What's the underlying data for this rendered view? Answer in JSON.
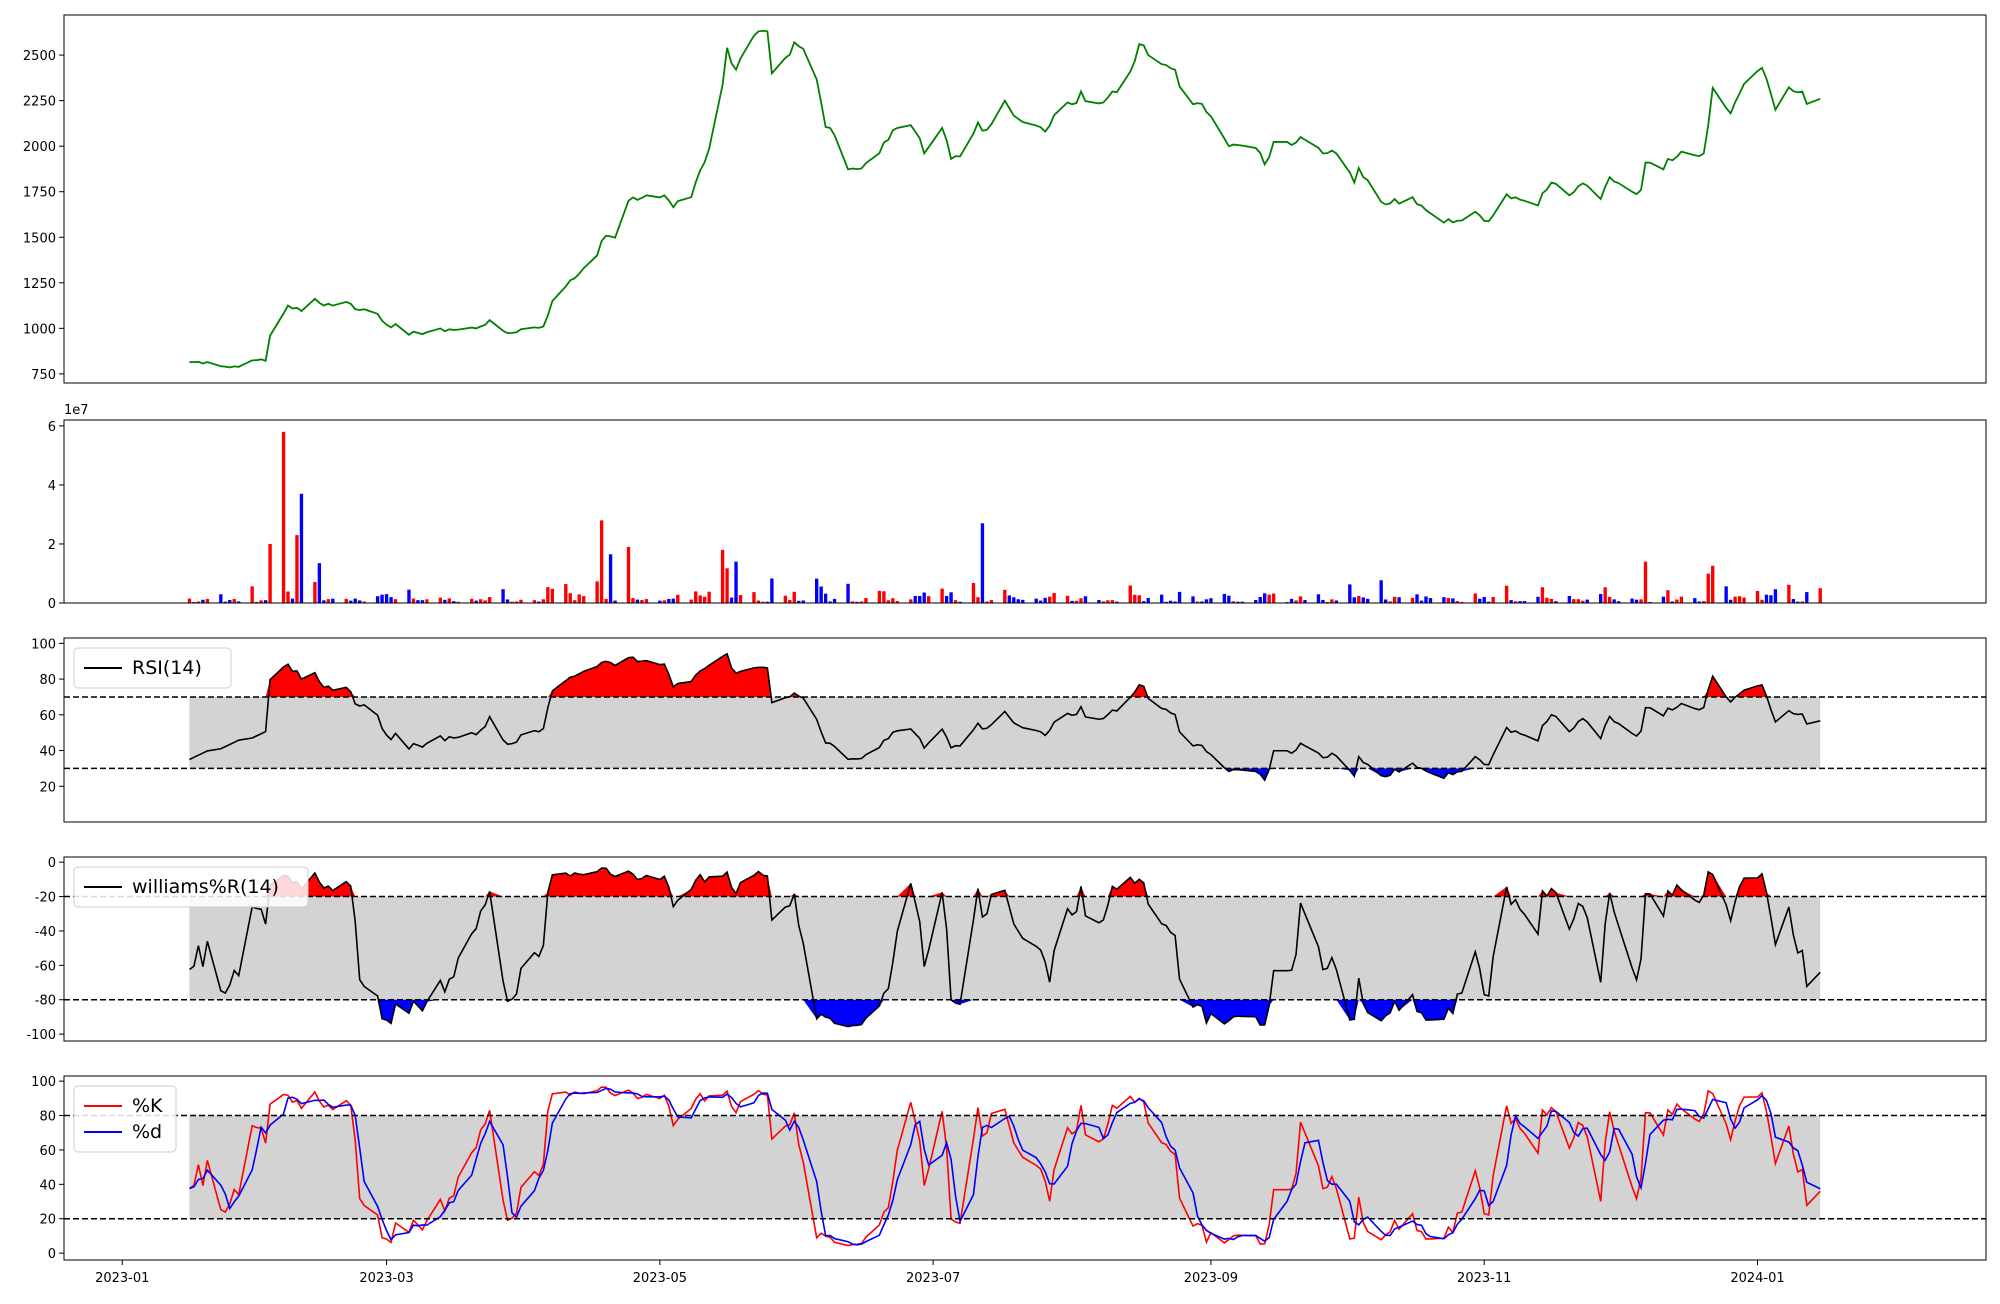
{
  "chart_data": [
    {
      "type": "line",
      "panel": "price",
      "xlim": [
        "2022-12-19",
        "2024-02-21"
      ],
      "ylim": [
        700,
        2720
      ],
      "yticks": [
        750,
        1000,
        1250,
        1500,
        1750,
        2000,
        2250,
        2500
      ],
      "color": "#008000",
      "series": [
        {
          "points": [
            [
              "2023-01-16",
              815
            ],
            [
              "2023-01-20",
              815
            ],
            [
              "2023-01-25",
              785
            ],
            [
              "2023-01-29",
              810
            ],
            [
              "2023-02-01",
              830
            ],
            [
              "2023-02-02",
              822
            ],
            [
              "2023-02-03",
              960
            ],
            [
              "2023-02-07",
              1125
            ],
            [
              "2023-02-10",
              1095
            ],
            [
              "2023-02-12",
              1175
            ],
            [
              "2023-02-14",
              1140
            ],
            [
              "2023-02-18",
              1130
            ],
            [
              "2023-02-20",
              1145
            ],
            [
              "2023-02-23",
              1100
            ],
            [
              "2023-02-26",
              1110
            ],
            [
              "2023-03-01",
              1020
            ],
            [
              "2023-03-05",
              1005
            ],
            [
              "2023-03-06",
              965
            ],
            [
              "2023-03-08",
              975
            ],
            [
              "2023-03-12",
              985
            ],
            [
              "2023-03-15",
              995
            ],
            [
              "2023-03-18",
              990
            ],
            [
              "2023-03-22",
              1010
            ],
            [
              "2023-03-24",
              1045
            ],
            [
              "2023-03-26",
              975
            ],
            [
              "2023-03-29",
              975
            ],
            [
              "2023-03-31",
              995
            ],
            [
              "2023-04-05",
              1010
            ],
            [
              "2023-04-07",
              1150
            ],
            [
              "2023-04-10",
              1230
            ],
            [
              "2023-04-14",
              1330
            ],
            [
              "2023-04-16",
              1350
            ],
            [
              "2023-04-18",
              1480
            ],
            [
              "2023-04-20",
              1505
            ],
            [
              "2023-04-22",
              1510
            ],
            [
              "2023-04-24",
              1700
            ],
            [
              "2023-04-26",
              1705
            ],
            [
              "2023-04-28",
              1730
            ],
            [
              "2023-05-02",
              1730
            ],
            [
              "2023-05-04",
              1665
            ],
            [
              "2023-05-06",
              1740
            ],
            [
              "2023-05-08",
              1720
            ],
            [
              "2023-05-14",
              2140
            ],
            [
              "2023-05-16",
              2540
            ],
            [
              "2023-05-18",
              2420
            ],
            [
              "2023-05-20",
              2600
            ],
            [
              "2023-05-25",
              2630
            ],
            [
              "2023-05-26",
              2400
            ],
            [
              "2023-05-28",
              2400
            ],
            [
              "2023-05-31",
              2570
            ],
            [
              "2023-06-04",
              2500
            ],
            [
              "2023-06-06",
              2240
            ],
            [
              "2023-06-07",
              2105
            ],
            [
              "2023-06-09",
              2060
            ],
            [
              "2023-06-11",
              1870
            ],
            [
              "2023-06-17",
              1900
            ],
            [
              "2023-06-20",
              2020
            ],
            [
              "2023-06-23",
              2100
            ],
            [
              "2023-06-24",
              2130
            ],
            [
              "2023-06-27",
              2080
            ],
            [
              "2023-06-29",
              1960
            ],
            [
              "2023-07-02",
              2000
            ],
            [
              "2023-07-03",
              2100
            ],
            [
              "2023-07-05",
              1930
            ],
            [
              "2023-07-08",
              1940
            ],
            [
              "2023-07-11",
              2130
            ],
            [
              "2023-07-13",
              2090
            ],
            [
              "2023-07-15",
              2170
            ],
            [
              "2023-07-16",
              2120
            ],
            [
              "2023-07-17",
              2250
            ],
            [
              "2023-07-20",
              2150
            ],
            [
              "2023-07-26",
              2080
            ],
            [
              "2023-07-28",
              2170
            ],
            [
              "2023-08-01",
              2230
            ],
            [
              "2023-08-03",
              2300
            ],
            [
              "2023-08-05",
              2210
            ],
            [
              "2023-08-08",
              2240
            ],
            [
              "2023-08-10",
              2300
            ],
            [
              "2023-08-12",
              2340
            ],
            [
              "2023-08-13",
              2290
            ],
            [
              "2023-08-16",
              2560
            ],
            [
              "2023-08-18",
              2500
            ],
            [
              "2023-08-21",
              2450
            ],
            [
              "2023-08-24",
              2420
            ],
            [
              "2023-08-26",
              2280
            ],
            [
              "2023-08-28",
              2230
            ],
            [
              "2023-09-02",
              2180
            ],
            [
              "2023-09-05",
              2000
            ],
            [
              "2023-09-11",
              1990
            ],
            [
              "2023-09-13",
              1900
            ],
            [
              "2023-09-16",
              2060
            ],
            [
              "2023-09-20",
              2020
            ],
            [
              "2023-09-21",
              2050
            ],
            [
              "2023-09-24",
              2070
            ],
            [
              "2023-09-26",
              1960
            ],
            [
              "2023-09-29",
              1960
            ],
            [
              "2023-10-03",
              1800
            ],
            [
              "2023-10-04",
              1880
            ],
            [
              "2023-10-10",
              1680
            ],
            [
              "2023-10-12",
              1710
            ],
            [
              "2023-10-14",
              1660
            ],
            [
              "2023-10-16",
              1720
            ],
            [
              "2023-10-23",
              1580
            ],
            [
              "2023-10-28",
              1620
            ],
            [
              "2023-10-30",
              1640
            ],
            [
              "2023-11-01",
              1590
            ],
            [
              "2023-11-03",
              1620
            ],
            [
              "2023-11-05",
              1750
            ],
            [
              "2023-11-10",
              1700
            ],
            [
              "2023-11-12",
              1660
            ],
            [
              "2023-11-16",
              1800
            ],
            [
              "2023-11-20",
              1730
            ],
            [
              "2023-11-22",
              1780
            ],
            [
              "2023-11-25",
              1770
            ],
            [
              "2023-11-27",
              1710
            ],
            [
              "2023-11-29",
              1830
            ],
            [
              "2023-12-02",
              1790
            ],
            [
              "2023-12-04",
              1750
            ],
            [
              "2023-12-06",
              1760
            ],
            [
              "2023-12-07",
              1910
            ],
            [
              "2023-12-10",
              1855
            ],
            [
              "2023-12-12",
              1930
            ],
            [
              "2023-12-15",
              1970
            ],
            [
              "2023-12-18",
              1950
            ],
            [
              "2023-12-20",
              1960
            ],
            [
              "2023-12-22",
              2320
            ],
            [
              "2023-12-25",
              2210
            ],
            [
              "2023-12-26",
              2180
            ],
            [
              "2023-12-28",
              2290
            ],
            [
              "2023-12-30",
              2400
            ],
            [
              "2024-01-02",
              2430
            ],
            [
              "2024-01-03",
              2370
            ],
            [
              "2024-01-05",
              2200
            ],
            [
              "2024-01-06",
              2120
            ],
            [
              "2024-01-07",
              2300
            ],
            [
              "2024-01-11",
              2300
            ],
            [
              "2024-01-14",
              2160
            ],
            [
              "2024-01-15",
              2260
            ]
          ]
        }
      ]
    },
    {
      "type": "bar",
      "panel": "volume",
      "exponent": "1e7",
      "ylim": [
        0,
        62
      ],
      "yticks": [
        0,
        2,
        4,
        6
      ],
      "colors": {
        "up": "#ff0000",
        "down": "#0000ff"
      },
      "values": []
    },
    {
      "type": "line",
      "panel": "rsi",
      "legend": [
        "RSI(14)"
      ],
      "ylim": [
        0,
        103
      ],
      "yticks": [
        20,
        40,
        60,
        80,
        100
      ],
      "thresholds": [
        30,
        70
      ],
      "colors": {
        "line": "#000000",
        "above": "#ff0000",
        "below": "#0000ff",
        "band": "#d3d3d3"
      }
    },
    {
      "type": "line",
      "panel": "williams",
      "legend": [
        "williams%R(14)"
      ],
      "ylim": [
        -104,
        3
      ],
      "yticks": [
        0,
        -20,
        -40,
        -60,
        -80,
        -100
      ],
      "thresholds": [
        -20,
        -80
      ]
    },
    {
      "type": "line",
      "panel": "stochastic",
      "legend": [
        "%K",
        "%d"
      ],
      "ylim": [
        -4,
        103
      ],
      "yticks": [
        0,
        20,
        40,
        60,
        80,
        100
      ],
      "thresholds": [
        20,
        80
      ],
      "colors": {
        "k": "#ff0000",
        "d": "#0000ff"
      },
      "xticks": [
        "2023-01",
        "2023-03",
        "2023-05",
        "2023-07",
        "2023-09",
        "2023-11",
        "2024-01"
      ]
    }
  ]
}
